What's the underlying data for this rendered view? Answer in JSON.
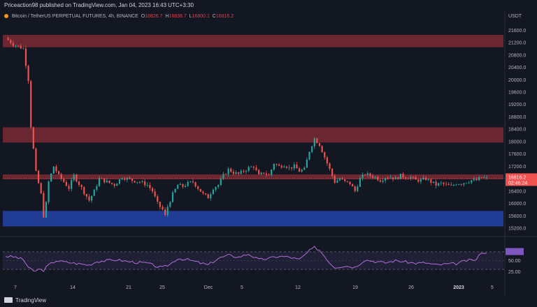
{
  "header": {
    "publisher": "Priceaction98 published on TradingView.com, Jan 04, 2023 16:43 UTC+3:30"
  },
  "legend": {
    "symbol": "Bitcoin / TetherUS PERPETUAL FUTURES, 4h, BINANCE",
    "o_label": "O",
    "o_value": "16826.7",
    "h_label": "H",
    "h_value": "16838.7",
    "l_label": "L",
    "l_value": "16800.1",
    "c_label": "C",
    "c_value": "16816.2",
    "symbol_color": "#f7931a"
  },
  "footer": {
    "brand": "TradingView"
  },
  "chart_data": {
    "type": "candlestick",
    "currency": "USDT",
    "ylim": [
      15000,
      21900
    ],
    "yticks": [
      21600,
      21200,
      20800,
      20400,
      20000,
      19600,
      19200,
      18800,
      18400,
      18000,
      17600,
      17200,
      16800,
      16400,
      16000,
      15600,
      15200
    ],
    "x_labels": [
      "7",
      "14",
      "21",
      "25",
      "Dec",
      "5",
      "12",
      "19",
      "26",
      "2023",
      "5"
    ],
    "last_price": "16816.2",
    "countdown": "02:46:24",
    "price_path": [
      [
        0,
        21350
      ],
      [
        3,
        21150
      ],
      [
        7,
        21000
      ],
      [
        9,
        20000
      ],
      [
        10,
        18500
      ],
      [
        12,
        17000
      ],
      [
        14,
        16300
      ],
      [
        15,
        15600
      ],
      [
        16,
        16000
      ],
      [
        17,
        16700
      ],
      [
        19,
        17200
      ],
      [
        21,
        16900
      ],
      [
        23,
        16700
      ],
      [
        25,
        16500
      ],
      [
        27,
        16900
      ],
      [
        30,
        16500
      ],
      [
        33,
        16100
      ],
      [
        35,
        16400
      ],
      [
        37,
        16800
      ],
      [
        40,
        16700
      ],
      [
        43,
        16600
      ],
      [
        46,
        16850
      ],
      [
        50,
        16750
      ],
      [
        53,
        16700
      ],
      [
        56,
        16600
      ],
      [
        58,
        16400
      ],
      [
        60,
        16000
      ],
      [
        62,
        15800
      ],
      [
        63,
        15600
      ],
      [
        64,
        15900
      ],
      [
        66,
        16300
      ],
      [
        68,
        16600
      ],
      [
        70,
        16550
      ],
      [
        72,
        16650
      ],
      [
        74,
        16700
      ],
      [
        76,
        16500
      ],
      [
        78,
        16300
      ],
      [
        80,
        16200
      ],
      [
        82,
        16500
      ],
      [
        84,
        16600
      ],
      [
        86,
        16900
      ],
      [
        88,
        17100
      ],
      [
        90,
        17000
      ],
      [
        92,
        16950
      ],
      [
        94,
        17050
      ],
      [
        96,
        17150
      ],
      [
        98,
        17200
      ],
      [
        100,
        16900
      ],
      [
        102,
        17000
      ],
      [
        104,
        16900
      ],
      [
        106,
        17300
      ],
      [
        108,
        17200
      ],
      [
        110,
        17250
      ],
      [
        112,
        17150
      ],
      [
        114,
        17200
      ],
      [
        116,
        17050
      ],
      [
        118,
        17100
      ],
      [
        120,
        17700
      ],
      [
        122,
        18100
      ],
      [
        124,
        17900
      ],
      [
        126,
        17500
      ],
      [
        128,
        17100
      ],
      [
        130,
        16700
      ],
      [
        132,
        16800
      ],
      [
        134,
        16700
      ],
      [
        136,
        16650
      ],
      [
        138,
        16400
      ],
      [
        140,
        16800
      ],
      [
        142,
        16950
      ],
      [
        144,
        16900
      ],
      [
        146,
        16850
      ],
      [
        148,
        16750
      ],
      [
        150,
        16850
      ],
      [
        152,
        16850
      ],
      [
        154,
        16800
      ],
      [
        156,
        16900
      ],
      [
        158,
        16850
      ],
      [
        160,
        16850
      ],
      [
        162,
        16750
      ],
      [
        164,
        16750
      ],
      [
        166,
        16800
      ],
      [
        168,
        16700
      ],
      [
        170,
        16600
      ],
      [
        172,
        16650
      ],
      [
        174,
        16600
      ],
      [
        176,
        16550
      ],
      [
        178,
        16650
      ],
      [
        180,
        16650
      ],
      [
        182,
        16700
      ],
      [
        184,
        16750
      ],
      [
        186,
        16750
      ],
      [
        188,
        16850
      ],
      [
        190,
        16816
      ]
    ],
    "zones": [
      {
        "type": "resistance",
        "from": 21050,
        "to": 21450,
        "color": "#7a2a35"
      },
      {
        "type": "resistance",
        "from": 17970,
        "to": 18460,
        "color": "#7a2a35"
      },
      {
        "type": "resistance",
        "from": 16780,
        "to": 16940,
        "color": "#7a2a35"
      },
      {
        "type": "support",
        "from": 15260,
        "to": 15760,
        "color": "#2443a8"
      }
    ],
    "rsi": {
      "levels": [
        75,
        50,
        25
      ],
      "ylim": [
        0,
        100
      ],
      "band": [
        30,
        70
      ],
      "current": [
        69,
        66
      ],
      "path": [
        [
          0,
          60
        ],
        [
          4,
          58
        ],
        [
          7,
          52
        ],
        [
          9,
          35
        ],
        [
          11,
          25
        ],
        [
          13,
          30
        ],
        [
          15,
          28
        ],
        [
          17,
          40
        ],
        [
          20,
          50
        ],
        [
          23,
          47
        ],
        [
          26,
          45
        ],
        [
          30,
          42
        ],
        [
          33,
          40
        ],
        [
          36,
          48
        ],
        [
          40,
          50
        ],
        [
          44,
          52
        ],
        [
          48,
          48
        ],
        [
          52,
          46
        ],
        [
          56,
          44
        ],
        [
          60,
          36
        ],
        [
          62,
          34
        ],
        [
          65,
          42
        ],
        [
          68,
          55
        ],
        [
          72,
          52
        ],
        [
          76,
          46
        ],
        [
          80,
          40
        ],
        [
          84,
          55
        ],
        [
          88,
          62
        ],
        [
          92,
          58
        ],
        [
          96,
          65
        ],
        [
          100,
          52
        ],
        [
          104,
          55
        ],
        [
          108,
          60
        ],
        [
          112,
          58
        ],
        [
          116,
          52
        ],
        [
          120,
          72
        ],
        [
          122,
          80
        ],
        [
          124,
          74
        ],
        [
          126,
          60
        ],
        [
          128,
          45
        ],
        [
          130,
          35
        ],
        [
          134,
          38
        ],
        [
          138,
          35
        ],
        [
          142,
          52
        ],
        [
          146,
          48
        ],
        [
          150,
          45
        ],
        [
          154,
          50
        ],
        [
          158,
          47
        ],
        [
          162,
          44
        ],
        [
          166,
          45
        ],
        [
          170,
          40
        ],
        [
          174,
          42
        ],
        [
          178,
          43
        ],
        [
          182,
          50
        ],
        [
          186,
          52
        ],
        [
          188,
          70
        ],
        [
          190,
          66
        ]
      ]
    },
    "colors": {
      "up": "#26a69a",
      "down": "#ef5350",
      "rsi_line": "#b06fd8",
      "price_label_bg": "#ef5350"
    }
  }
}
